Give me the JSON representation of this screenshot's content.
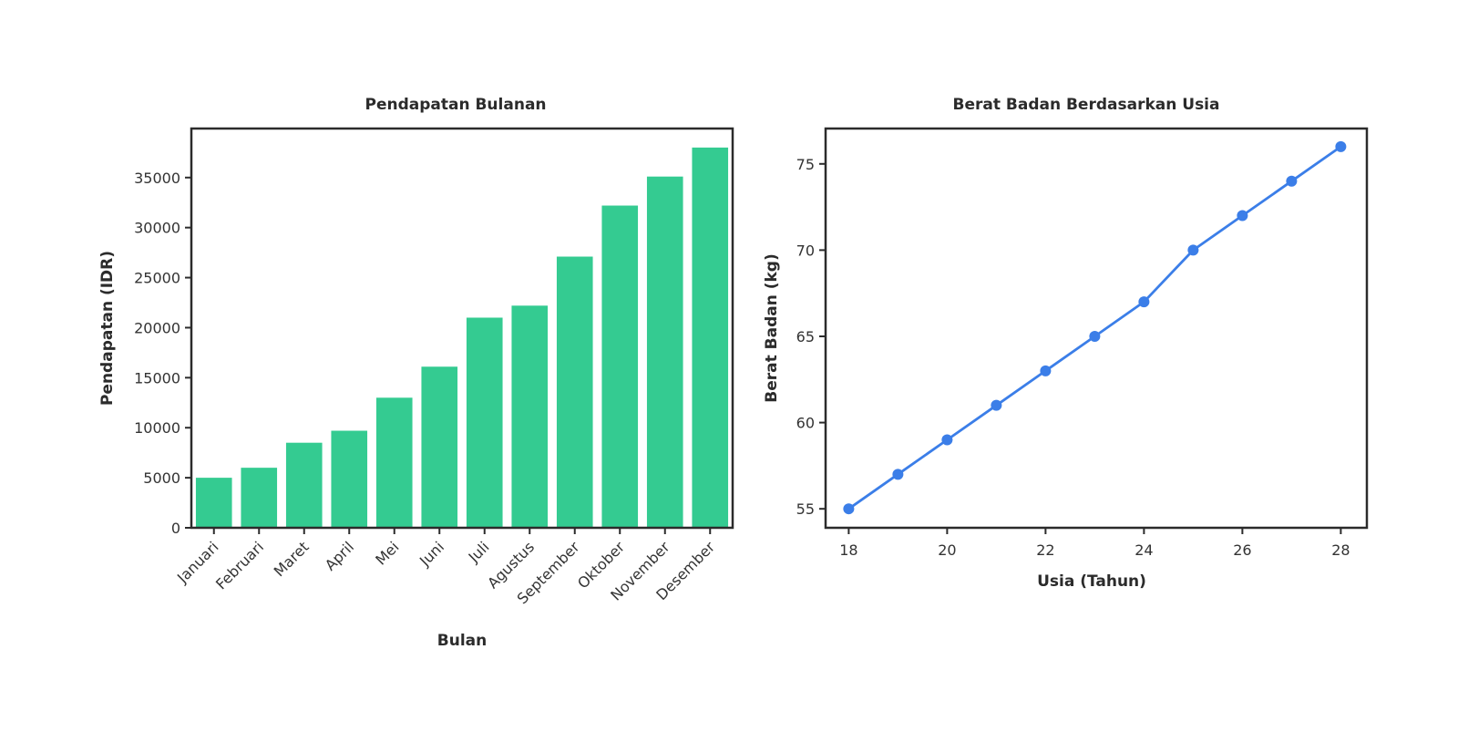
{
  "chart_data": [
    {
      "type": "bar",
      "title": "Pendapatan Bulanan",
      "xlabel": "Bulan",
      "ylabel": "Pendapatan (IDR)",
      "categories": [
        "Januari",
        "Februari",
        "Maret",
        "April",
        "Mei",
        "Juni",
        "Juli",
        "Agustus",
        "September",
        "Oktober",
        "November",
        "Desember"
      ],
      "values": [
        5000,
        6000,
        8500,
        9700,
        13000,
        16100,
        21000,
        22200,
        27100,
        32200,
        35100,
        38000
      ],
      "ylim": [
        0,
        39900
      ],
      "yticks": [
        0,
        5000,
        10000,
        15000,
        20000,
        25000,
        30000,
        35000
      ],
      "ytick_labels": [
        "0",
        "5000",
        "10000",
        "15000",
        "20000",
        "25000",
        "30000",
        "35000"
      ],
      "grid": false,
      "colors": {
        "bar": "#34cb91"
      }
    },
    {
      "type": "line",
      "title": "Berat Badan Berdasarkan Usia",
      "xlabel": "Usia (Tahun)",
      "ylabel": "Berat Badan (kg)",
      "x": [
        18,
        19,
        20,
        21,
        22,
        23,
        24,
        25,
        26,
        27,
        28
      ],
      "y": [
        55,
        57,
        59,
        61,
        63,
        65,
        67,
        70,
        72,
        74,
        76
      ],
      "xlim": [
        17.53,
        28.53
      ],
      "ylim": [
        53.9,
        77.05
      ],
      "xticks": [
        18,
        20,
        22,
        24,
        26,
        28
      ],
      "xtick_labels": [
        "18",
        "20",
        "22",
        "24",
        "26",
        "28"
      ],
      "yticks": [
        55,
        60,
        65,
        70,
        75
      ],
      "ytick_labels": [
        "55",
        "60",
        "65",
        "70",
        "75"
      ],
      "grid": false,
      "markers": true,
      "colors": {
        "line": "#3b7ee8"
      }
    }
  ]
}
